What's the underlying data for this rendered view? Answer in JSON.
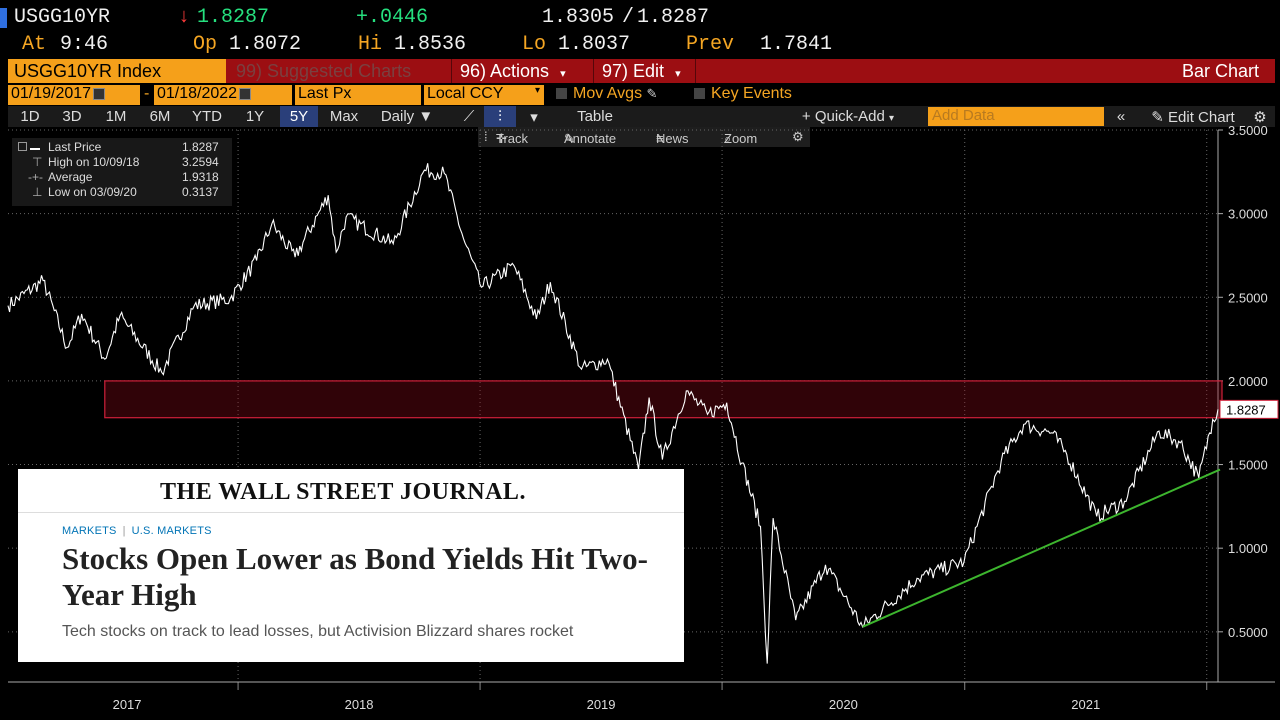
{
  "quote": {
    "ticker": "USGG10YR",
    "direction_arrow": "↓",
    "last": "1.8287",
    "change": "+.0446",
    "bid": "1.8305",
    "ask": "1.8287",
    "at_label": "At",
    "time": "9:46",
    "op_label": "Op",
    "open": "1.8072",
    "hi_label": "Hi",
    "high": "1.8536",
    "lo_label": "Lo",
    "low": "1.8037",
    "prev_label": "Prev",
    "prev": "1.7841"
  },
  "toolbar": {
    "security": "USGG10YR Index",
    "suggested": "99) Suggested Charts",
    "actions": "96) Actions",
    "edit": "97) Edit",
    "chart_type": "Bar Chart",
    "start_date": "01/19/2017",
    "date_sep": "-",
    "end_date": "01/18/2022",
    "field": "Last Px",
    "currency": "Local CCY",
    "mov_avgs": "Mov Avgs",
    "key_events": "Key Events",
    "periods": [
      "1D",
      "3D",
      "1M",
      "6M",
      "YTD",
      "1Y",
      "5Y",
      "Max"
    ],
    "selected_period": "5Y",
    "frequency": "Daily",
    "table": "Table",
    "quick_add": "Quick-Add",
    "add_data_placeholder": "Add Data",
    "edit_chart": "Edit Chart",
    "track": "Track",
    "annotate": "Annotate",
    "news": "News",
    "zoom": "Zoom"
  },
  "legend": [
    {
      "label": "Last Price",
      "value": "1.8287"
    },
    {
      "label": "High on 10/09/18",
      "value": "3.2594"
    },
    {
      "label": "Average",
      "value": "1.9318"
    },
    {
      "label": "Low on 03/09/20",
      "value": "0.3137"
    }
  ],
  "article": {
    "masthead": "THE WALL STREET JOURNAL.",
    "category1": "MARKETS",
    "category_sep": "|",
    "category2": "U.S. MARKETS",
    "headline": "Stocks Open Lower as Bond Yields Hit Two-Year High",
    "dek": "Tech stocks on track to lead losses, but Activision Blizzard shares rocket"
  },
  "colors": {
    "line": "#ffffff",
    "trendline": "#3db52e",
    "band": "#d0203a",
    "last_price_tag": "#d0203a",
    "toolbar_red": "#9c0e12",
    "accent_orange": "#f5a01a"
  },
  "chart_data": {
    "type": "line",
    "title": "",
    "xlabel": "",
    "ylabel": "",
    "ylim": [
      0.2,
      3.5
    ],
    "yticks": [
      0.5,
      1.0,
      1.5,
      2.0,
      2.5,
      3.0,
      3.5
    ],
    "ytick_labels": [
      "0.5000",
      "1.0000",
      "1.5000",
      "2.0000",
      "2.5000",
      "3.0000",
      "3.5000"
    ],
    "xtick_labels": [
      "2017",
      "2018",
      "2019",
      "2020",
      "2021"
    ],
    "last_price_label": "1.8287",
    "series": [
      {
        "values": [
          {
            "x": "2017-01-19",
            "y": 2.45
          },
          {
            "x": "2017-03-13",
            "y": 2.6
          },
          {
            "x": "2017-04-18",
            "y": 2.2
          },
          {
            "x": "2017-05-10",
            "y": 2.4
          },
          {
            "x": "2017-06-14",
            "y": 2.13
          },
          {
            "x": "2017-07-07",
            "y": 2.39
          },
          {
            "x": "2017-09-08",
            "y": 2.05
          },
          {
            "x": "2017-10-27",
            "y": 2.45
          },
          {
            "x": "2017-12-20",
            "y": 2.49
          },
          {
            "x": "2018-01-29",
            "y": 2.72
          },
          {
            "x": "2018-02-21",
            "y": 2.94
          },
          {
            "x": "2018-03-28",
            "y": 2.74
          },
          {
            "x": "2018-05-17",
            "y": 3.11
          },
          {
            "x": "2018-05-29",
            "y": 2.77
          },
          {
            "x": "2018-06-13",
            "y": 2.98
          },
          {
            "x": "2018-08-23",
            "y": 2.82
          },
          {
            "x": "2018-10-09",
            "y": 3.26
          },
          {
            "x": "2018-11-08",
            "y": 3.24
          },
          {
            "x": "2018-12-07",
            "y": 2.85
          },
          {
            "x": "2019-01-03",
            "y": 2.56
          },
          {
            "x": "2019-02-21",
            "y": 2.69
          },
          {
            "x": "2019-03-27",
            "y": 2.37
          },
          {
            "x": "2019-04-17",
            "y": 2.59
          },
          {
            "x": "2019-06-03",
            "y": 2.07
          },
          {
            "x": "2019-07-12",
            "y": 2.13
          },
          {
            "x": "2019-08-28",
            "y": 1.47
          },
          {
            "x": "2019-09-13",
            "y": 1.9
          },
          {
            "x": "2019-10-03",
            "y": 1.53
          },
          {
            "x": "2019-11-08",
            "y": 1.94
          },
          {
            "x": "2019-12-10",
            "y": 1.8
          },
          {
            "x": "2020-01-08",
            "y": 1.87
          },
          {
            "x": "2020-01-31",
            "y": 1.51
          },
          {
            "x": "2020-02-28",
            "y": 1.13
          },
          {
            "x": "2020-03-09",
            "y": 0.31
          },
          {
            "x": "2020-03-18",
            "y": 1.18
          },
          {
            "x": "2020-04-21",
            "y": 0.57
          },
          {
            "x": "2020-06-05",
            "y": 0.9
          },
          {
            "x": "2020-07-31",
            "y": 0.53
          },
          {
            "x": "2020-10-21",
            "y": 0.82
          },
          {
            "x": "2020-12-31",
            "y": 0.92
          },
          {
            "x": "2021-02-25",
            "y": 1.52
          },
          {
            "x": "2021-03-31",
            "y": 1.74
          },
          {
            "x": "2021-05-12",
            "y": 1.69
          },
          {
            "x": "2021-06-04",
            "y": 1.56
          },
          {
            "x": "2021-07-19",
            "y": 1.19
          },
          {
            "x": "2021-08-30",
            "y": 1.28
          },
          {
            "x": "2021-10-21",
            "y": 1.7
          },
          {
            "x": "2021-11-22",
            "y": 1.63
          },
          {
            "x": "2021-12-20",
            "y": 1.42
          },
          {
            "x": "2022-01-10",
            "y": 1.77
          },
          {
            "x": "2022-01-18",
            "y": 1.83
          }
        ]
      }
    ],
    "band": {
      "y_low": 1.78,
      "y_high": 2.0,
      "x_start": "2017-06-14",
      "x_end": "2022-01-18"
    },
    "trendline": {
      "x_start": "2020-07-31",
      "y_start": 0.53,
      "x_end": "2022-01-18",
      "y_end": 1.47
    }
  }
}
